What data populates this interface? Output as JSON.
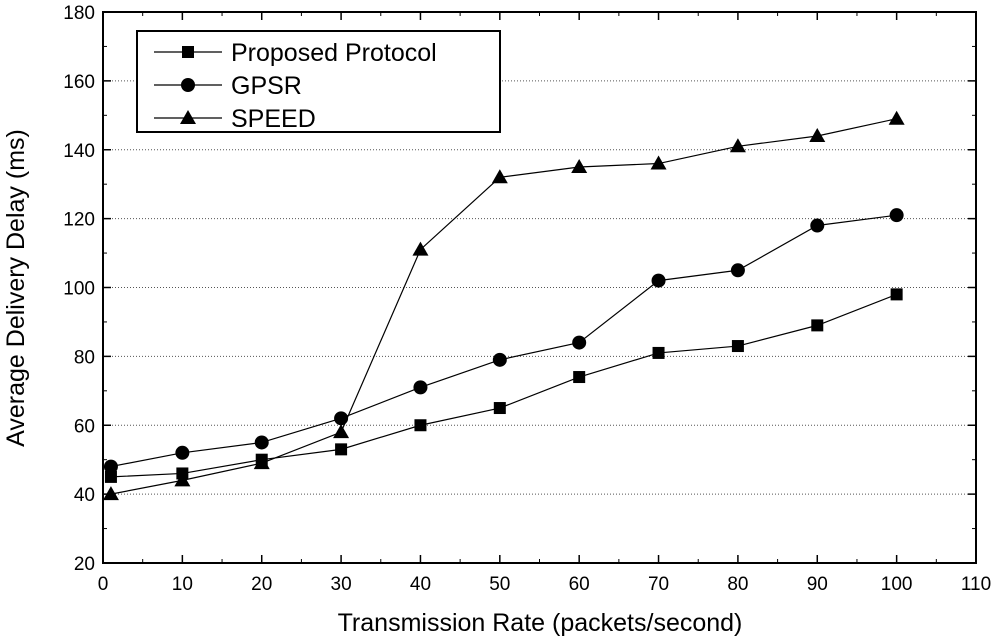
{
  "chart_data": {
    "type": "line",
    "title": "",
    "xlabel": "Transmission Rate (packets/second)",
    "ylabel": "Average Delivery Delay (ms)",
    "xlim": [
      0,
      110
    ],
    "ylim": [
      20,
      180
    ],
    "xticks": [
      0,
      10,
      20,
      30,
      40,
      50,
      60,
      70,
      80,
      90,
      100,
      110
    ],
    "yticks": [
      20,
      40,
      60,
      80,
      100,
      120,
      140,
      160,
      180
    ],
    "grid": "horizontal dotted",
    "legend_position": "top-left",
    "x": [
      1,
      10,
      20,
      30,
      40,
      50,
      60,
      70,
      80,
      90,
      100
    ],
    "series": [
      {
        "name": "Proposed Protocol",
        "marker": "square",
        "values": [
          45,
          46,
          50,
          53,
          60,
          65,
          74,
          81,
          83,
          89,
          98
        ]
      },
      {
        "name": "GPSR",
        "marker": "circle",
        "values": [
          48,
          52,
          55,
          62,
          71,
          79,
          84,
          102,
          105,
          118,
          121
        ]
      },
      {
        "name": "SPEED",
        "marker": "triangle",
        "values": [
          40,
          44,
          49,
          58,
          111,
          132,
          135,
          136,
          141,
          144,
          149
        ]
      }
    ]
  }
}
